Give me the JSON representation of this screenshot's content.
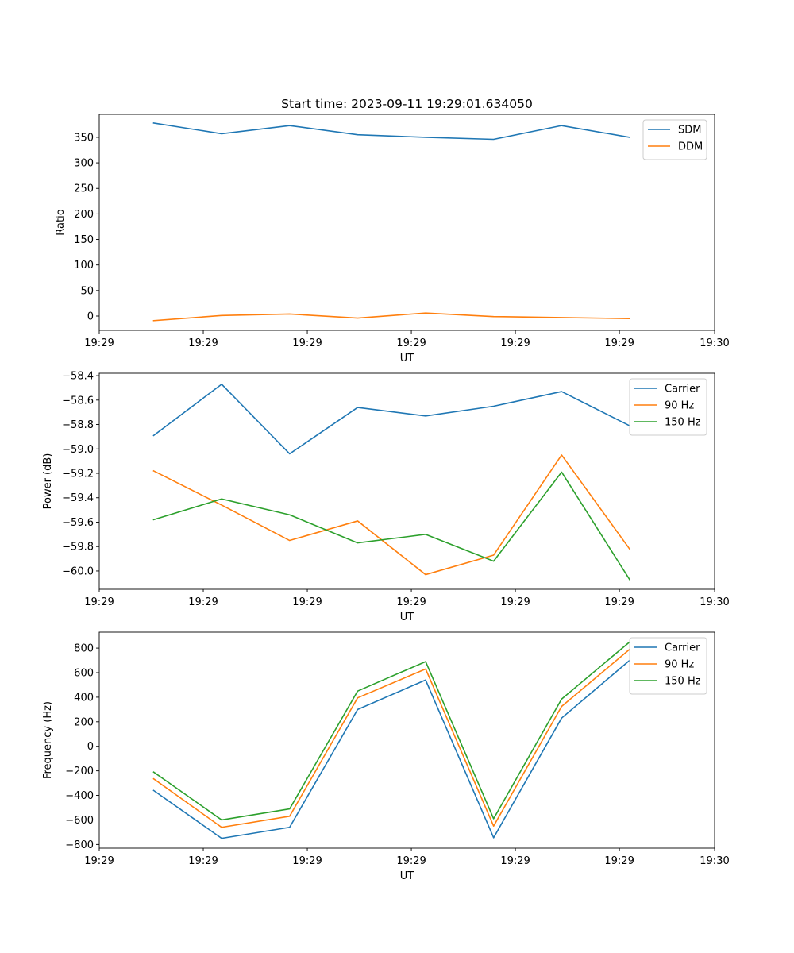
{
  "figure_title": "Start time: 2023-09-11 19:29:01.634050",
  "chart_data": [
    {
      "type": "line",
      "title": "Start time: 2023-09-11 19:29:01.634050",
      "xlabel": "UT",
      "ylabel": "Ratio",
      "x": [
        1,
        2,
        3,
        4,
        5,
        6,
        7,
        8
      ],
      "xlim": [
        0.2,
        9.25
      ],
      "x_ticks": [
        0.2,
        1.73,
        3.26,
        4.79,
        6.32,
        7.85,
        9.25
      ],
      "x_tick_labels": [
        "19:29",
        "19:29",
        "19:29",
        "19:29",
        "19:29",
        "19:29",
        "19:30"
      ],
      "ylim": [
        -28,
        395
      ],
      "y_ticks": [
        0,
        50,
        100,
        150,
        200,
        250,
        300,
        350
      ],
      "y_tick_labels": [
        "0",
        "50",
        "100",
        "150",
        "200",
        "250",
        "300",
        "350"
      ],
      "legend_position": "top-right",
      "series": [
        {
          "name": "SDM",
          "color": "#1f77b4",
          "values": [
            378,
            357,
            373,
            355,
            350,
            346,
            373,
            350
          ]
        },
        {
          "name": "DDM",
          "color": "#ff7f0e",
          "values": [
            -9,
            1,
            4,
            -4,
            6,
            -1,
            -3,
            -5
          ]
        }
      ]
    },
    {
      "type": "line",
      "title": "",
      "xlabel": "UT",
      "ylabel": "Power (dB)",
      "x": [
        1,
        2,
        3,
        4,
        5,
        6,
        7,
        8
      ],
      "xlim": [
        0.2,
        9.25
      ],
      "x_ticks": [
        0.2,
        1.73,
        3.26,
        4.79,
        6.32,
        7.85,
        9.25
      ],
      "x_tick_labels": [
        "19:29",
        "19:29",
        "19:29",
        "19:29",
        "19:29",
        "19:29",
        "19:30"
      ],
      "ylim": [
        -60.15,
        -58.38
      ],
      "y_ticks": [
        -60.0,
        -59.8,
        -59.6,
        -59.4,
        -59.2,
        -59.0,
        -58.8,
        -58.6,
        -58.4
      ],
      "y_tick_labels": [
        "−60.0",
        "−59.8",
        "−59.6",
        "−59.4",
        "−59.2",
        "−59.0",
        "−58.8",
        "−58.6",
        "−58.4"
      ],
      "legend_position": "top-right",
      "series": [
        {
          "name": "Carrier",
          "color": "#1f77b4",
          "values": [
            -58.89,
            -58.47,
            -59.04,
            -58.66,
            -58.73,
            -58.65,
            -58.53,
            -58.81
          ]
        },
        {
          "name": "90 Hz",
          "color": "#ff7f0e",
          "values": [
            -59.18,
            -59.46,
            -59.75,
            -59.59,
            -60.03,
            -59.87,
            -59.05,
            -59.82
          ]
        },
        {
          "name": "150 Hz",
          "color": "#2ca02c",
          "values": [
            -59.58,
            -59.41,
            -59.54,
            -59.77,
            -59.7,
            -59.92,
            -59.19,
            -60.07
          ]
        }
      ]
    },
    {
      "type": "line",
      "title": "",
      "xlabel": "UT",
      "ylabel": "Frequency (Hz)",
      "x": [
        1,
        2,
        3,
        4,
        5,
        6,
        7,
        8
      ],
      "xlim": [
        0.2,
        9.25
      ],
      "x_ticks": [
        0.2,
        1.73,
        3.26,
        4.79,
        6.32,
        7.85,
        9.25
      ],
      "x_tick_labels": [
        "19:29",
        "19:29",
        "19:29",
        "19:29",
        "19:29",
        "19:29",
        "19:30"
      ],
      "ylim": [
        -830,
        930
      ],
      "y_ticks": [
        -800,
        -600,
        -400,
        -200,
        0,
        200,
        400,
        600,
        800
      ],
      "y_tick_labels": [
        "−800",
        "−600",
        "−400",
        "−200",
        "0",
        "200",
        "400",
        "600",
        "800"
      ],
      "legend_position": "top-right",
      "series": [
        {
          "name": "Carrier",
          "color": "#1f77b4",
          "values": [
            -360,
            -750,
            -660,
            300,
            540,
            -745,
            230,
            700
          ]
        },
        {
          "name": "90 Hz",
          "color": "#ff7f0e",
          "values": [
            -265,
            -660,
            -570,
            395,
            630,
            -650,
            325,
            790
          ]
        },
        {
          "name": "150 Hz",
          "color": "#2ca02c",
          "values": [
            -210,
            -600,
            -510,
            450,
            690,
            -590,
            385,
            850
          ]
        }
      ]
    }
  ]
}
